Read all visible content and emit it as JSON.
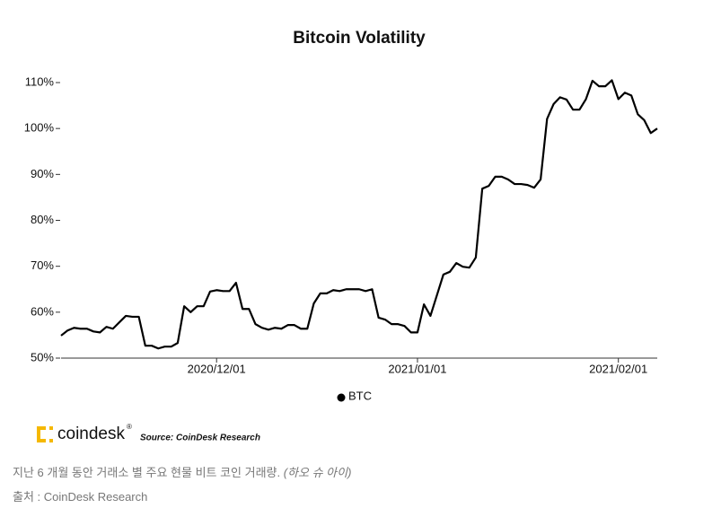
{
  "chart_data": {
    "type": "line",
    "title": "Bitcoin Volatility",
    "x": [
      "2020/11/07",
      "2020/11/08",
      "2020/11/09",
      "2020/11/10",
      "2020/11/11",
      "2020/11/12",
      "2020/11/13",
      "2020/11/14",
      "2020/11/15",
      "2020/11/16",
      "2020/11/17",
      "2020/11/18",
      "2020/11/19",
      "2020/11/20",
      "2020/11/21",
      "2020/11/22",
      "2020/11/23",
      "2020/11/24",
      "2020/11/25",
      "2020/11/26",
      "2020/11/27",
      "2020/11/28",
      "2020/11/29",
      "2020/11/30",
      "2020/12/01",
      "2020/12/02",
      "2020/12/03",
      "2020/12/04",
      "2020/12/05",
      "2020/12/06",
      "2020/12/07",
      "2020/12/08",
      "2020/12/09",
      "2020/12/10",
      "2020/12/11",
      "2020/12/12",
      "2020/12/13",
      "2020/12/14",
      "2020/12/15",
      "2020/12/16",
      "2020/12/17",
      "2020/12/18",
      "2020/12/19",
      "2020/12/20",
      "2020/12/21",
      "2020/12/22",
      "2020/12/23",
      "2020/12/24",
      "2020/12/25",
      "2020/12/26",
      "2020/12/27",
      "2020/12/28",
      "2020/12/29",
      "2020/12/30",
      "2020/12/31",
      "2021/01/01",
      "2021/01/02",
      "2021/01/03",
      "2021/01/04",
      "2021/01/05",
      "2021/01/06",
      "2021/01/07",
      "2021/01/08",
      "2021/01/09",
      "2021/01/10",
      "2021/01/11",
      "2021/01/12",
      "2021/01/13",
      "2021/01/14",
      "2021/01/15",
      "2021/01/16",
      "2021/01/17",
      "2021/01/18",
      "2021/01/19",
      "2021/01/20",
      "2021/01/21",
      "2021/01/22",
      "2021/01/23",
      "2021/01/24",
      "2021/01/25",
      "2021/01/26",
      "2021/01/27",
      "2021/01/28",
      "2021/01/29",
      "2021/01/30",
      "2021/01/31",
      "2021/02/01",
      "2021/02/02",
      "2021/02/03",
      "2021/02/04",
      "2021/02/05",
      "2021/02/06",
      "2021/02/07"
    ],
    "series": [
      {
        "name": "BTC",
        "color": "#000000",
        "values": [
          54.9,
          56,
          56.6,
          56.4,
          56.4,
          55.8,
          55.6,
          56.8,
          56.4,
          57.8,
          59.2,
          59,
          59,
          52.7,
          52.7,
          52.1,
          52.5,
          52.5,
          53.3,
          61.3,
          60,
          61.3,
          61.3,
          64.5,
          64.8,
          64.6,
          64.6,
          66.4,
          60.7,
          60.7,
          57.4,
          56.6,
          56.2,
          56.6,
          56.4,
          57.2,
          57.2,
          56.4,
          56.4,
          61.9,
          64.1,
          64.1,
          64.8,
          64.6,
          65,
          65,
          65,
          64.6,
          65,
          58.8,
          58.4,
          57.4,
          57.4,
          57,
          55.6,
          55.6,
          61.7,
          59.2,
          63.7,
          68.2,
          68.8,
          70.7,
          69.9,
          69.7,
          71.9,
          86.9,
          87.5,
          89.5,
          89.5,
          88.9,
          87.9,
          87.9,
          87.7,
          87.1,
          88.9,
          102.1,
          105.3,
          106.8,
          106.3,
          104.1,
          104.1,
          106.4,
          110.4,
          109.2,
          109.2,
          110.5,
          106.4,
          107.8,
          107.2,
          103.1,
          101.8,
          99,
          100
        ]
      }
    ],
    "xlim": [
      "2020/11/07",
      "2021/02/07"
    ],
    "xticks": [
      "2020/12/01",
      "2021/01/01",
      "2021/02/01"
    ],
    "ylim": [
      50,
      110
    ],
    "yticks": [
      {
        "value": 50,
        "label": "50%"
      },
      {
        "value": 60,
        "label": "60%"
      },
      {
        "value": 70,
        "label": "70%"
      },
      {
        "value": 80,
        "label": "80%"
      },
      {
        "value": 90,
        "label": "90%"
      },
      {
        "value": 100,
        "label": "100%"
      },
      {
        "value": 110,
        "label": "110%"
      }
    ],
    "legend": "bottom",
    "source": "Source: CoinDesk Research"
  },
  "logo": "coindesk",
  "caption": "지난 6 개월 동안 거래소 별 주요 현물 비트 코인 거래량.",
  "caption_credit": "(하오 슈 아이)",
  "credit_line": "출처 : CoinDesk Research"
}
